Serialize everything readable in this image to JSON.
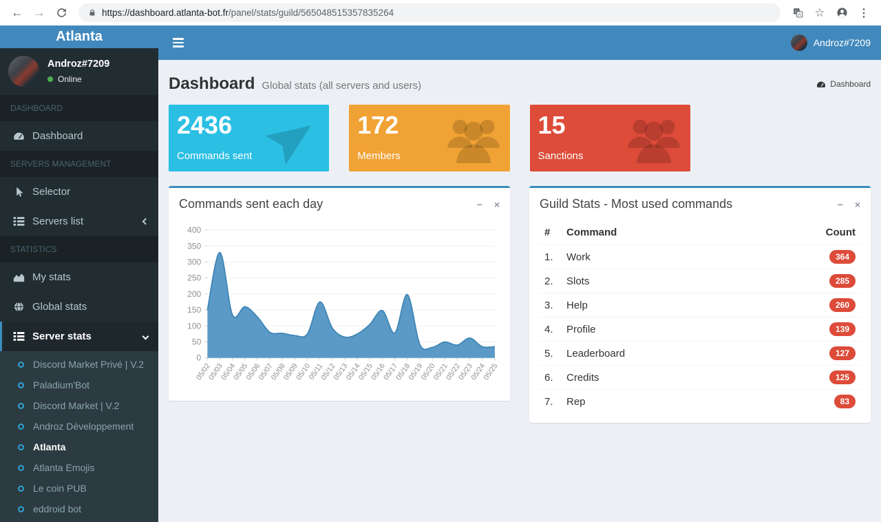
{
  "browser": {
    "url_host": "https://dashboard.atlanta-bot.fr",
    "url_path": "/panel/stats/guild/565048515357835264"
  },
  "icons": {
    "back": "←",
    "forward": "→",
    "star": "☆",
    "menu_dots": "⋮",
    "minimize": "−",
    "close": "×"
  },
  "sidebar": {
    "brand": "Atlanta",
    "user": {
      "name": "Androz#7209",
      "status": "Online"
    },
    "sections": [
      {
        "label": "DASHBOARD",
        "items": [
          {
            "label": "Dashboard",
            "icon": "tachometer"
          }
        ]
      },
      {
        "label": "SERVERS MANAGEMENT",
        "items": [
          {
            "label": "Selector",
            "icon": "cursor"
          },
          {
            "label": "Servers list",
            "icon": "list",
            "chevron": "left"
          }
        ]
      },
      {
        "label": "STATISTICS",
        "items": [
          {
            "label": "My stats",
            "icon": "area-chart"
          },
          {
            "label": "Global stats",
            "icon": "globe"
          },
          {
            "label": "Server stats",
            "icon": "list",
            "chevron": "down",
            "active": true
          }
        ]
      }
    ],
    "servers": [
      "Discord Market Privé | V.2",
      "Paladium'Bot",
      "Discord Market | V.2",
      "Androz Développement",
      "Atlanta",
      "Atlanta Emojis",
      "Le coin PUB",
      "eddroid bot"
    ],
    "active_server": "Atlanta"
  },
  "navbar": {
    "user_name": "Androz#7209"
  },
  "page": {
    "title": "Dashboard",
    "subtitle": "Global stats (all servers and users)",
    "breadcrumb": "Dashboard"
  },
  "stat_cards": [
    {
      "value": "2436",
      "label": "Commands sent",
      "color": "#2bbfe4",
      "icon": "paper-plane"
    },
    {
      "value": "172",
      "label": "Members",
      "color": "#f1a234",
      "icon": "users"
    },
    {
      "value": "15",
      "label": "Sanctions",
      "color": "#dd4b39",
      "icon": "users"
    }
  ],
  "chart_panel": {
    "title": "Commands sent each day"
  },
  "table_panel": {
    "title": "Guild Stats - Most used commands",
    "columns": [
      "#",
      "Command",
      "Count"
    ],
    "rows": [
      {
        "rank": "1.",
        "command": "Work",
        "count": "364"
      },
      {
        "rank": "2.",
        "command": "Slots",
        "count": "285"
      },
      {
        "rank": "3.",
        "command": "Help",
        "count": "260"
      },
      {
        "rank": "4.",
        "command": "Profile",
        "count": "139"
      },
      {
        "rank": "5.",
        "command": "Leaderboard",
        "count": "127"
      },
      {
        "rank": "6.",
        "command": "Credits",
        "count": "125"
      },
      {
        "rank": "7.",
        "command": "Rep",
        "count": "83"
      }
    ],
    "badge_color": "#dd4b39"
  },
  "chart_data": {
    "type": "area",
    "title": "Commands sent each day",
    "x": [
      "05/02",
      "05/03",
      "05/04",
      "05/05",
      "05/06",
      "05/07",
      "05/08",
      "05/09",
      "05/10",
      "05/11",
      "05/12",
      "05/13",
      "05/14",
      "05/15",
      "05/16",
      "05/17",
      "05/18",
      "05/19",
      "05/20",
      "05/21",
      "05/22",
      "05/23",
      "05/24",
      "05/25"
    ],
    "values": [
      150,
      330,
      135,
      160,
      128,
      80,
      77,
      70,
      75,
      175,
      93,
      65,
      75,
      105,
      148,
      78,
      198,
      42,
      33,
      50,
      40,
      62,
      35,
      35
    ],
    "ylim": [
      0,
      400
    ],
    "yticks": [
      0,
      50,
      100,
      150,
      200,
      250,
      300,
      350,
      400
    ],
    "grid": true,
    "legend": "none",
    "fill_color": "#5b9ac6",
    "line_color": "#3f86b6",
    "axis_text_color": "#8f8f8f"
  }
}
